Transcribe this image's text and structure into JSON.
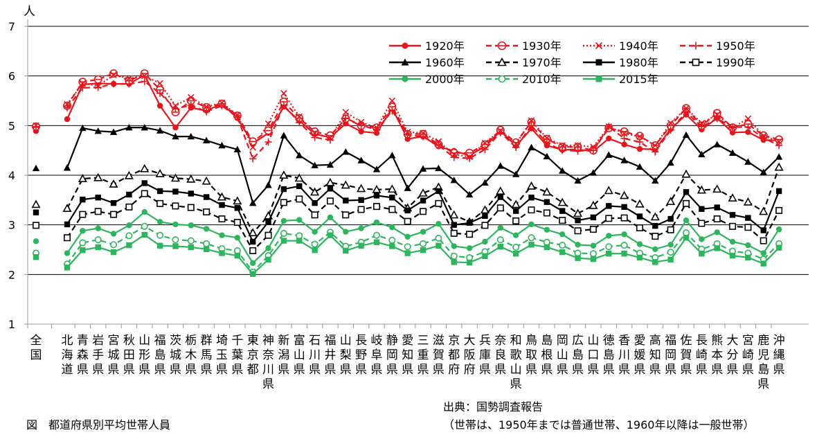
{
  "caption": "図　都道府県別平均世帯人員",
  "source_line1": "出典：国勢調査報告",
  "source_line2": "（世帯は、1950年までは普通世帯、1960年以降は一般世帯）",
  "chart_data": {
    "type": "line",
    "title": "",
    "ylabel": "人",
    "xlabel": "",
    "ylim": [
      1,
      7
    ],
    "yticks": [
      1,
      2,
      3,
      4,
      5,
      6,
      7
    ],
    "grid": true,
    "legend_position": "top-right",
    "categories": [
      "全国",
      "北海道",
      "青森県",
      "岩手県",
      "宮城県",
      "秋田県",
      "山形県",
      "福島県",
      "茨城県",
      "栃木県",
      "群馬県",
      "埼玉県",
      "千葉県",
      "東京都",
      "神奈川県",
      "新潟県",
      "富山県",
      "石川県",
      "福井県",
      "山梨県",
      "長野県",
      "岐阜県",
      "静岡県",
      "愛知県",
      "三重県",
      "滋賀県",
      "京都府",
      "大阪府",
      "兵庫県",
      "奈良県",
      "和歌山県",
      "鳥取県",
      "島根県",
      "岡山県",
      "広島県",
      "山口県",
      "徳島県",
      "香川県",
      "愛媛県",
      "高知県",
      "福岡県",
      "佐賀県",
      "長崎県",
      "熊本県",
      "大分県",
      "宮崎県",
      "鹿児島県",
      "沖縄県"
    ],
    "series": [
      {
        "name": "1920年",
        "color": "#e8141c",
        "marker": "circle-filled",
        "dash": "solid",
        "values": [
          4.89,
          5.13,
          5.83,
          5.85,
          5.84,
          5.84,
          6.02,
          5.4,
          4.96,
          5.36,
          5.3,
          5.44,
          5.15,
          4.64,
          4.85,
          5.38,
          5.1,
          4.83,
          4.76,
          5.04,
          4.88,
          4.85,
          5.35,
          4.73,
          4.78,
          4.58,
          4.49,
          4.4,
          4.58,
          4.89,
          4.59,
          4.94,
          4.6,
          4.51,
          4.52,
          4.48,
          4.74,
          4.62,
          4.53,
          4.52,
          4.93,
          5.22,
          4.92,
          5.15,
          4.86,
          4.87,
          4.71,
          4.7
        ]
      },
      {
        "name": "1930年",
        "color": "#e8141c",
        "marker": "circle-open-bar",
        "dash": "8 5",
        "values": [
          4.98,
          5.4,
          5.88,
          5.93,
          6.05,
          5.9,
          6.05,
          5.72,
          5.27,
          5.5,
          5.37,
          5.44,
          5.2,
          4.68,
          4.9,
          5.48,
          5.15,
          4.88,
          4.8,
          5.14,
          5.0,
          4.96,
          5.38,
          4.83,
          4.83,
          4.62,
          4.45,
          4.45,
          4.62,
          4.91,
          4.66,
          5.07,
          4.73,
          4.57,
          4.57,
          4.5,
          4.95,
          4.88,
          4.79,
          4.6,
          5.0,
          5.35,
          5.0,
          5.25,
          4.96,
          5.03,
          4.8,
          4.72
        ]
      },
      {
        "name": "1940年",
        "color": "#e8141c",
        "marker": "cross",
        "dash": "2 3",
        "values": [
          5.0,
          5.43,
          5.85,
          5.8,
          6.02,
          5.95,
          6.0,
          5.85,
          5.4,
          5.57,
          5.38,
          5.46,
          5.21,
          4.56,
          5.04,
          5.65,
          5.18,
          4.85,
          4.75,
          5.27,
          5.07,
          4.96,
          5.5,
          4.87,
          4.85,
          4.68,
          4.42,
          4.37,
          4.65,
          4.9,
          4.63,
          5.1,
          4.75,
          4.6,
          4.6,
          4.57,
          4.98,
          4.84,
          4.78,
          4.6,
          5.05,
          5.35,
          5.05,
          5.22,
          4.96,
          5.14,
          4.79,
          4.68
        ]
      },
      {
        "name": "1950年",
        "color": "#e8141c",
        "marker": "plus",
        "dash": "8 5",
        "values": [
          4.97,
          5.36,
          5.76,
          5.77,
          5.84,
          5.84,
          5.89,
          5.65,
          5.34,
          5.41,
          5.28,
          5.4,
          5.17,
          4.33,
          4.67,
          5.41,
          5.06,
          4.76,
          4.71,
          5.15,
          5.01,
          4.91,
          5.3,
          4.81,
          4.78,
          4.6,
          4.36,
          4.34,
          4.52,
          4.86,
          4.56,
          5.0,
          4.65,
          4.5,
          4.49,
          4.5,
          4.98,
          4.74,
          4.67,
          4.47,
          4.91,
          5.27,
          4.98,
          5.14,
          4.97,
          4.97,
          4.75,
          4.6
        ]
      },
      {
        "name": "1960年",
        "color": "#000000",
        "marker": "triangle-filled",
        "dash": "solid",
        "values": [
          4.14,
          4.15,
          4.95,
          4.89,
          4.87,
          4.96,
          4.96,
          4.9,
          4.78,
          4.78,
          4.7,
          4.6,
          4.52,
          3.44,
          3.8,
          4.8,
          4.4,
          4.2,
          4.21,
          4.47,
          4.3,
          4.12,
          4.4,
          3.74,
          4.13,
          4.14,
          3.9,
          3.61,
          3.85,
          4.19,
          4.02,
          4.56,
          4.38,
          4.09,
          3.89,
          4.05,
          4.41,
          4.3,
          4.17,
          3.89,
          4.25,
          4.81,
          4.42,
          4.62,
          4.45,
          4.27,
          4.06,
          4.37
        ]
      },
      {
        "name": "1970年",
        "color": "#000000",
        "marker": "triangle-open",
        "dash": "8 5",
        "values": [
          3.41,
          3.33,
          3.93,
          3.95,
          3.82,
          3.99,
          4.13,
          4.03,
          3.94,
          3.92,
          3.88,
          3.56,
          3.48,
          2.84,
          3.18,
          4.0,
          3.94,
          3.66,
          3.85,
          3.8,
          3.73,
          3.71,
          3.72,
          3.34,
          3.64,
          3.76,
          3.2,
          3.06,
          3.3,
          3.68,
          3.41,
          3.78,
          3.66,
          3.45,
          3.23,
          3.39,
          3.69,
          3.59,
          3.42,
          3.16,
          3.47,
          4.02,
          3.7,
          3.72,
          3.54,
          3.46,
          3.27,
          4.16
        ]
      },
      {
        "name": "1980年",
        "color": "#000000",
        "marker": "square-filled",
        "dash": "solid",
        "values": [
          3.25,
          3.01,
          3.51,
          3.55,
          3.44,
          3.61,
          3.84,
          3.68,
          3.67,
          3.63,
          3.56,
          3.4,
          3.34,
          2.66,
          3.06,
          3.72,
          3.78,
          3.44,
          3.73,
          3.49,
          3.5,
          3.59,
          3.55,
          3.29,
          3.49,
          3.68,
          3.0,
          3.04,
          3.18,
          3.56,
          3.28,
          3.55,
          3.46,
          3.28,
          3.09,
          3.15,
          3.38,
          3.36,
          3.17,
          2.98,
          3.12,
          3.66,
          3.32,
          3.35,
          3.2,
          3.14,
          2.89,
          3.68
        ]
      },
      {
        "name": "1990年",
        "color": "#000000",
        "marker": "square-open",
        "dash": "8 5",
        "values": [
          2.99,
          2.74,
          3.21,
          3.27,
          3.21,
          3.36,
          3.63,
          3.43,
          3.38,
          3.35,
          3.26,
          3.12,
          3.05,
          2.48,
          2.79,
          3.45,
          3.52,
          3.2,
          3.48,
          3.2,
          3.31,
          3.37,
          3.31,
          3.07,
          3.27,
          3.43,
          2.83,
          2.81,
          2.99,
          3.34,
          3.08,
          3.3,
          3.24,
          3.09,
          2.88,
          2.91,
          3.13,
          3.14,
          2.94,
          2.77,
          2.9,
          3.43,
          3.03,
          3.12,
          2.97,
          2.95,
          2.68,
          3.29
        ]
      },
      {
        "name": "2000年",
        "color": "#2db55d",
        "marker": "circle-filled",
        "dash": "solid",
        "values": [
          2.67,
          2.43,
          2.88,
          2.93,
          2.82,
          2.99,
          3.26,
          3.06,
          3.01,
          2.99,
          2.92,
          2.79,
          2.74,
          2.23,
          2.53,
          3.08,
          3.1,
          2.86,
          3.15,
          2.86,
          2.93,
          3.05,
          2.95,
          2.76,
          2.86,
          3.02,
          2.57,
          2.53,
          2.66,
          2.94,
          2.79,
          3.01,
          2.9,
          2.81,
          2.6,
          2.58,
          2.78,
          2.81,
          2.61,
          2.51,
          2.6,
          3.09,
          2.71,
          2.85,
          2.66,
          2.59,
          2.43,
          2.91
        ]
      },
      {
        "name": "2010年",
        "color": "#2db55d",
        "marker": "circle-open",
        "dash": "8 5",
        "values": [
          2.43,
          2.21,
          2.64,
          2.7,
          2.6,
          2.78,
          2.97,
          2.79,
          2.7,
          2.68,
          2.62,
          2.52,
          2.48,
          2.05,
          2.38,
          2.83,
          2.78,
          2.61,
          2.85,
          2.57,
          2.65,
          2.79,
          2.69,
          2.56,
          2.62,
          2.73,
          2.37,
          2.34,
          2.46,
          2.7,
          2.55,
          2.74,
          2.65,
          2.59,
          2.43,
          2.42,
          2.56,
          2.59,
          2.43,
          2.34,
          2.45,
          2.84,
          2.51,
          2.62,
          2.47,
          2.43,
          2.31,
          2.62
        ]
      },
      {
        "name": "2015年",
        "color": "#2db55d",
        "marker": "square-filled",
        "dash": "solid",
        "values": [
          2.35,
          2.14,
          2.49,
          2.55,
          2.45,
          2.59,
          2.8,
          2.58,
          2.57,
          2.55,
          2.51,
          2.43,
          2.38,
          2.01,
          2.3,
          2.68,
          2.68,
          2.49,
          2.79,
          2.48,
          2.58,
          2.65,
          2.57,
          2.43,
          2.49,
          2.58,
          2.25,
          2.24,
          2.37,
          2.56,
          2.42,
          2.6,
          2.55,
          2.45,
          2.33,
          2.31,
          2.42,
          2.42,
          2.34,
          2.25,
          2.3,
          2.74,
          2.42,
          2.53,
          2.38,
          2.34,
          2.22,
          2.54
        ]
      }
    ]
  }
}
